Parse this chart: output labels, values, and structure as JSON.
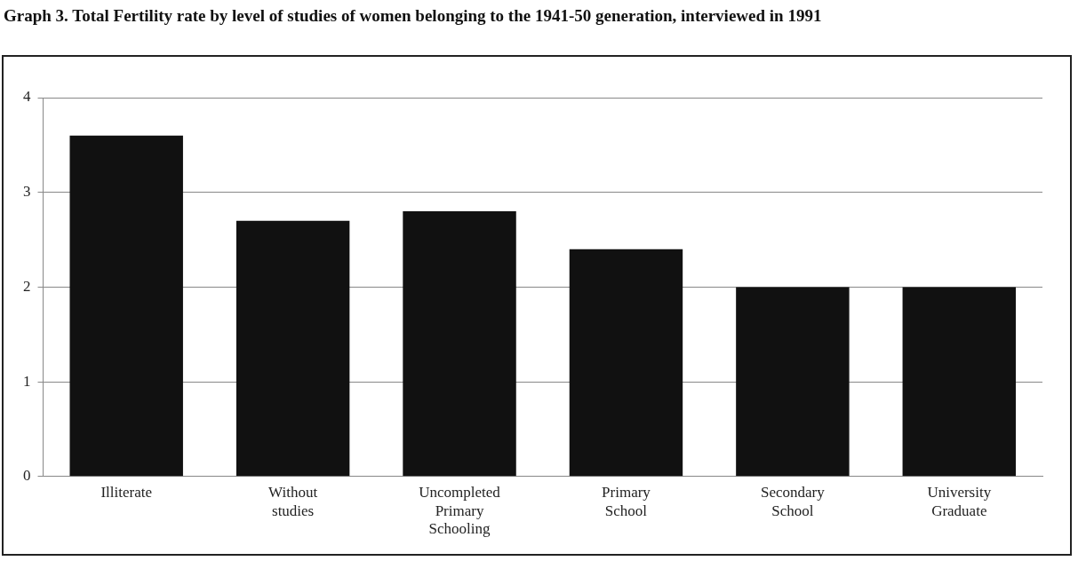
{
  "chart_data": {
    "type": "bar",
    "title": "Graph 3. Total Fertility rate by level of studies of women belonging to the 1941-50 generation, interviewed in 1991",
    "categories": [
      "Illiterate",
      "Without studies",
      "Uncompleted Primary Schooling",
      "Primary School",
      "Secondary School",
      "University Graduate"
    ],
    "values": [
      3.6,
      2.7,
      2.8,
      2.4,
      2.0,
      2.0
    ],
    "color": "#111111",
    "ylim": [
      0,
      4
    ],
    "yticks": [
      0,
      1,
      2,
      3,
      4
    ],
    "grid": "y"
  }
}
